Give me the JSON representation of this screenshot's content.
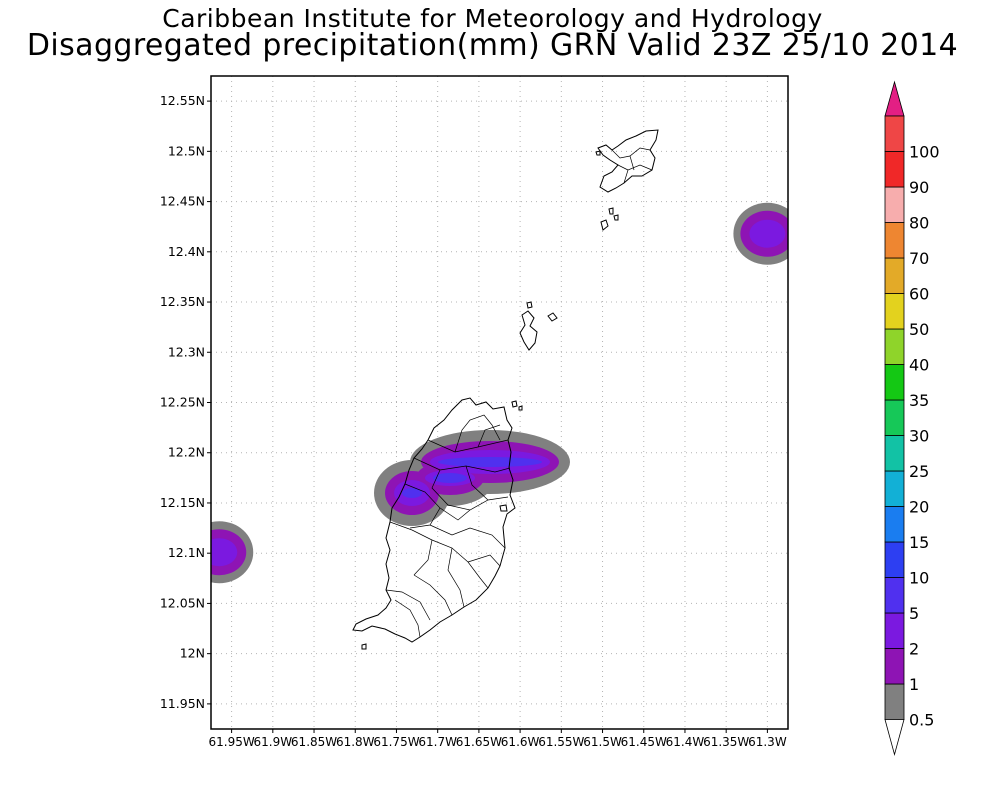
{
  "header": {
    "org": "Caribbean Institute for Meteorology and Hydrology",
    "product": "Disaggregated precipitation(mm) GRN Valid 23Z 25/10 2014"
  },
  "map": {
    "region": "Grenada",
    "lat_range": [
      11.925,
      12.575
    ],
    "lon_range": [
      -61.975,
      -61.275
    ],
    "lat_ticks": [
      {
        "value": 12.55,
        "label": "12.55N"
      },
      {
        "value": 12.5,
        "label": "12.5N"
      },
      {
        "value": 12.45,
        "label": "12.45N"
      },
      {
        "value": 12.4,
        "label": "12.4N"
      },
      {
        "value": 12.35,
        "label": "12.35N"
      },
      {
        "value": 12.3,
        "label": "12.3N"
      },
      {
        "value": 12.25,
        "label": "12.25N"
      },
      {
        "value": 12.2,
        "label": "12.2N"
      },
      {
        "value": 12.15,
        "label": "12.15N"
      },
      {
        "value": 12.1,
        "label": "12.1N"
      },
      {
        "value": 12.05,
        "label": "12.05N"
      },
      {
        "value": 12.0,
        "label": "12N"
      },
      {
        "value": 11.95,
        "label": "11.95N"
      }
    ],
    "lon_ticks": [
      {
        "value": -61.95,
        "label": "61.95W"
      },
      {
        "value": -61.9,
        "label": "61.9W"
      },
      {
        "value": -61.85,
        "label": "61.85W"
      },
      {
        "value": -61.8,
        "label": "61.8W"
      },
      {
        "value": -61.75,
        "label": "61.75W"
      },
      {
        "value": -61.7,
        "label": "61.7W"
      },
      {
        "value": -61.65,
        "label": "61.65W"
      },
      {
        "value": -61.6,
        "label": "61.6W"
      },
      {
        "value": -61.55,
        "label": "61.55W"
      },
      {
        "value": -61.5,
        "label": "61.5W"
      },
      {
        "value": -61.45,
        "label": "61.45W"
      },
      {
        "value": -61.4,
        "label": "61.4W"
      },
      {
        "value": -61.35,
        "label": "61.35W"
      },
      {
        "value": -61.3,
        "label": "61.3W"
      }
    ],
    "grid": "dotted",
    "precip_cells": [
      {
        "name": "cell-west-edge",
        "lon": -61.965,
        "lat": 12.101,
        "max_mm": 2
      },
      {
        "name": "cell-grenada-north",
        "lon": -61.66,
        "lat": 12.17,
        "max_mm": 5
      },
      {
        "name": "cell-northeast",
        "lon": -61.3,
        "lat": 12.418,
        "max_mm": 2
      }
    ]
  },
  "colorbar": {
    "labels": [
      "0.5",
      "1",
      "2",
      "5",
      "10",
      "15",
      "20",
      "25",
      "30",
      "35",
      "40",
      "50",
      "60",
      "70",
      "80",
      "90",
      "100"
    ],
    "colors": [
      "#808080",
      "#8e14b4",
      "#7b19e0",
      "#5030ef",
      "#2d3ff2",
      "#1a7df0",
      "#12b0d6",
      "#12c2a5",
      "#16c858",
      "#14c814",
      "#8fd42a",
      "#e3d21e",
      "#e3aa28",
      "#ee8631",
      "#f7adad",
      "#f02828",
      "#ef4646"
    ],
    "top_arrow_color": "#e31f84"
  }
}
